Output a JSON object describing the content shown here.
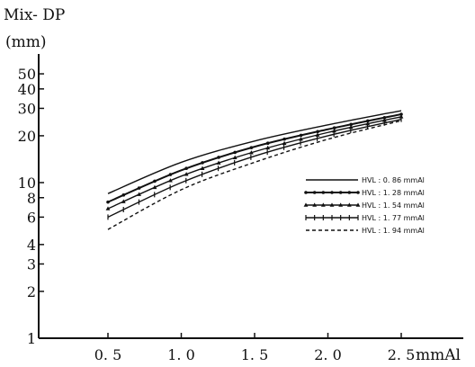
{
  "chart_data": {
    "type": "line",
    "title": "",
    "ylabel_line1": "Mix- DP",
    "ylabel_line2": "(mm)",
    "xlabel_unit": "mmAl",
    "y_scale": "log",
    "ylim": [
      1,
      60
    ],
    "xlim": [
      0.0,
      2.6
    ],
    "grid": false,
    "legend_position": "right",
    "x_ticks": [
      0.5,
      1.0,
      1.5,
      2.0,
      2.5
    ],
    "x_tick_labels": [
      "0. 5",
      "1. 0",
      "1. 5",
      "2. 0",
      "2. 5"
    ],
    "y_ticks": [
      1,
      2,
      3,
      4,
      6,
      8,
      10,
      20,
      30,
      40,
      50
    ],
    "y_tick_labels": [
      "1",
      "2",
      "3",
      "4",
      "6",
      "8",
      "10",
      "20",
      "30",
      "40",
      "50"
    ],
    "x": [
      0.5,
      1.0,
      1.5,
      2.0,
      2.5
    ],
    "series": [
      {
        "name": "HVL : 0. 86 mmAl",
        "style": "solid",
        "values": [
          8.5,
          13.5,
          18.5,
          23.5,
          29.0
        ]
      },
      {
        "name": "HVL : 1. 28 mmAl",
        "style": "dots",
        "values": [
          7.5,
          12.0,
          17.0,
          22.0,
          27.5
        ]
      },
      {
        "name": "HVL : 1. 54 mmAl",
        "style": "tri",
        "values": [
          6.8,
          11.0,
          15.8,
          21.0,
          26.5
        ]
      },
      {
        "name": "HVL : 1. 77 mmAl",
        "style": "plus",
        "values": [
          6.0,
          10.0,
          14.8,
          20.0,
          25.5
        ]
      },
      {
        "name": "HVL : 1. 94 mmAl",
        "style": "dashed",
        "values": [
          5.0,
          9.0,
          13.5,
          19.0,
          25.0
        ]
      }
    ]
  }
}
